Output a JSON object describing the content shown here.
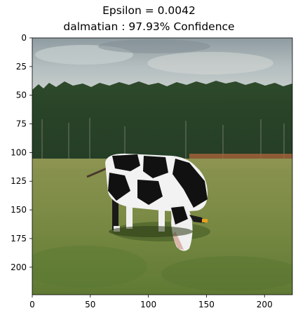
{
  "figure": {
    "title_line1": "Epsilon = 0.0042",
    "title_line2": "dalmatian : 97.93% Confidence"
  },
  "image": {
    "subject": "black-and-white Holstein cow grazing in a green pasture with a forest and cloudy sky in the background"
  },
  "axes": {
    "x_ticks": [
      0,
      50,
      100,
      150,
      200
    ],
    "y_ticks": [
      0,
      25,
      50,
      75,
      100,
      125,
      150,
      175,
      200
    ],
    "xlim": [
      0,
      224
    ],
    "ylim": [
      224,
      0
    ]
  },
  "colors": {
    "sky": "#a8b4b8",
    "forest": "#2f4f2a",
    "grass": "#7f8f45",
    "cow_black": "#111111",
    "cow_white": "#f2f2f2"
  }
}
